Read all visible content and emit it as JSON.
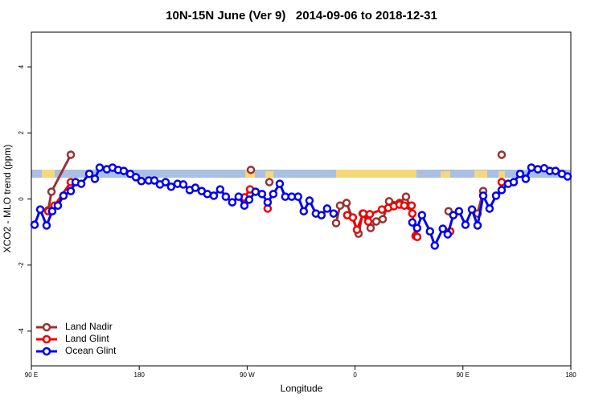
{
  "chart_data": {
    "type": "line",
    "title": "10N-15N June (Ver 9)   2014-09-06 to 2018-12-31",
    "xlabel": "Longitude",
    "ylabel": "XCO2 - MLO trend (ppm)",
    "xlim": [
      90,
      540
    ],
    "ylim": [
      -5.05,
      5.05
    ],
    "xticks": [
      {
        "value": 90,
        "label": "90 E"
      },
      180,
      {
        "value": 270,
        "label": "90 W"
      },
      {
        "value": 360,
        "label": "0"
      },
      {
        "value": 450,
        "label": "90 E"
      },
      {
        "value": 540,
        "label": "180"
      }
    ],
    "yticks": [
      -4,
      -2,
      0,
      2,
      4
    ],
    "legend": "bottom-left",
    "series": [
      {
        "name": "Land Nadir",
        "color": "#993333",
        "x": [
          104.1,
          106.8,
          122.9,
          null,
          273.1,
          null,
          288.5,
          null,
          344.2,
          347.5,
          352.9,
          362.9,
          366.3,
          373.0,
          377.7,
          383.1,
          388.4,
          397.1,
          402.5,
          405.8,
          null,
          438.0,
          null,
          462.2,
          466.9,
          null,
          482.3
        ],
        "values": [
          -0.34,
          0.22,
          1.34,
          null,
          0.88,
          null,
          0.51,
          null,
          -0.73,
          -0.2,
          -0.12,
          -1.05,
          -0.44,
          -0.88,
          -0.68,
          -0.61,
          -0.07,
          -0.12,
          0.07,
          -0.22,
          null,
          -0.37,
          null,
          -0.44,
          0.24,
          null,
          1.34
        ]
      },
      {
        "name": "Land Glint",
        "color": "#ee0000",
        "x": [
          104.1,
          109.4,
          122.9,
          null,
          267.7,
          272.4,
          null,
          287.1,
          null,
          353.5,
          358.2,
          361.6,
          366.9,
          371.0,
          372.3,
          382.4,
          387.7,
          392.4,
          397.1,
          401.1,
          407.2,
          407.8,
          410.5,
          411.9,
          null,
          439.4,
          null,
          482.3
        ],
        "values": [
          -0.37,
          -0.2,
          0.51,
          null,
          0.05,
          0.29,
          null,
          -0.29,
          null,
          -0.49,
          -0.56,
          -0.93,
          -0.44,
          -0.68,
          -0.46,
          -0.32,
          -0.27,
          -0.22,
          -0.17,
          -0.2,
          -0.2,
          -0.44,
          -1.12,
          -1.15,
          null,
          -0.98,
          null,
          0.51
        ]
      },
      {
        "name": "Ocean Glint",
        "color": "#0000ee",
        "x": [
          92.7,
          97.4,
          102.7,
          107.4,
          112.1,
          116.8,
          122.9,
          126.9,
          131.6,
          138.3,
          143.0,
          147.0,
          153.0,
          157.7,
          162.4,
          167.1,
          172.5,
          177.2,
          181.8,
          187.9,
          192.6,
          197.3,
          202.0,
          206.6,
          212.0,
          216.7,
          222.1,
          226.8,
          232.1,
          236.8,
          242.2,
          247.5,
          252.2,
          257.6,
          262.9,
          267.7,
          271.7,
          277.0,
          282.4,
          287.1,
          291.8,
          297.2,
          301.8,
          307.2,
          312.5,
          317.2,
          322.0,
          327.3,
          332.0,
          336.7,
          342.1,
          null,
          407.8,
          411.8,
          415.8,
          422.5,
          426.5,
          433.2,
          437.3,
          442.0,
          446.7,
          452.1,
          457.5,
          462.2,
          466.9,
          472.2,
          477.6,
          482.3,
          487.7,
          492.4,
          497.7,
          502.4,
          507.1,
          512.5,
          517.8,
          522.5,
          527.2,
          532.6,
          537.3
        ],
        "values": [
          -0.78,
          -0.32,
          -0.8,
          -0.37,
          -0.2,
          0.1,
          0.24,
          0.51,
          0.46,
          0.76,
          0.61,
          0.95,
          0.9,
          0.95,
          0.88,
          0.85,
          0.76,
          0.66,
          0.54,
          0.56,
          0.56,
          0.44,
          0.51,
          0.37,
          0.46,
          0.44,
          0.27,
          0.34,
          0.24,
          0.15,
          0.1,
          0.29,
          0.07,
          -0.1,
          0.07,
          -0.2,
          -0.02,
          0.22,
          0.15,
          -0.1,
          0.15,
          0.46,
          0.07,
          0.07,
          0.07,
          -0.37,
          -0.05,
          -0.44,
          -0.49,
          -0.29,
          -0.44,
          null,
          -0.71,
          -0.88,
          -0.49,
          -0.98,
          -1.41,
          -0.9,
          -1.07,
          -0.49,
          -0.37,
          -0.78,
          -0.32,
          -0.8,
          0.1,
          -0.29,
          0.1,
          0.27,
          0.46,
          0.51,
          0.76,
          0.61,
          0.95,
          0.9,
          0.93,
          0.85,
          0.85,
          0.76,
          0.68
        ]
      }
    ]
  }
}
